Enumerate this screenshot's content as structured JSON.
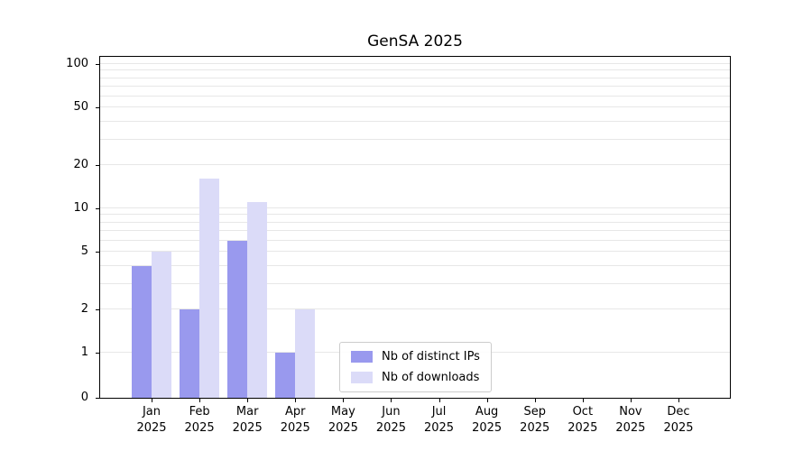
{
  "chart_data": {
    "type": "bar",
    "title": "GenSA 2025",
    "scale": "symlog",
    "grid": true,
    "categories": [
      "Jan 2025",
      "Feb 2025",
      "Mar 2025",
      "Apr 2025",
      "May 2025",
      "Jun 2025",
      "Jul 2025",
      "Aug 2025",
      "Sep 2025",
      "Oct 2025",
      "Nov 2025",
      "Dec 2025"
    ],
    "series": [
      {
        "name": "Nb of distinct IPs",
        "color": "#9999ee",
        "values": [
          4,
          2,
          6,
          1,
          0,
          0,
          0,
          0,
          0,
          0,
          0,
          0
        ]
      },
      {
        "name": "Nb of downloads",
        "color": "#dbdbf8",
        "values": [
          5,
          16,
          11,
          2,
          0,
          0,
          0,
          0,
          0,
          0,
          0,
          0
        ]
      }
    ],
    "y_ticks": [
      0,
      1,
      2,
      5,
      10,
      20,
      50,
      100
    ],
    "ylim": [
      0,
      100
    ],
    "legend_position": "inside-bottom-center"
  }
}
